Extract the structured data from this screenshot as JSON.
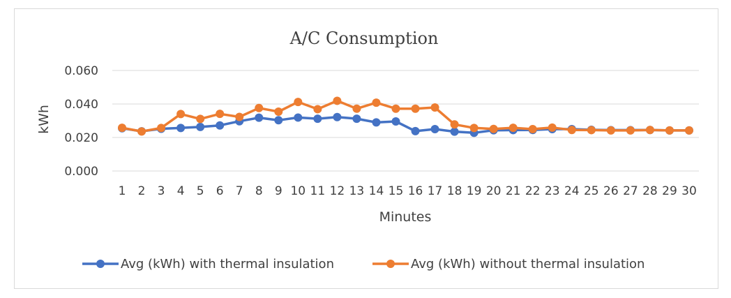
{
  "chart_data": {
    "type": "line",
    "title": "A/C Consumption",
    "xlabel": "Minutes",
    "ylabel": "kWh",
    "categories": [
      "1",
      "2",
      "3",
      "4",
      "5",
      "6",
      "7",
      "8",
      "9",
      "10",
      "11",
      "12",
      "13",
      "14",
      "15",
      "16",
      "17",
      "18",
      "19",
      "20",
      "21",
      "22",
      "23",
      "24",
      "25",
      "26",
      "27",
      "28",
      "29",
      "30"
    ],
    "ylim": [
      0,
      0.06
    ],
    "yticks": [
      0,
      0.02,
      0.04,
      0.06
    ],
    "ytick_labels": [
      "0.000",
      "0.020",
      "0.040",
      "0.060"
    ],
    "grid": true,
    "legend_position": "bottom",
    "series": [
      {
        "name": "Avg (kWh) with thermal insulation",
        "color": "#4472C4",
        "values": [
          0.0255,
          0.0237,
          0.0252,
          0.0257,
          0.0263,
          0.0272,
          0.0297,
          0.0318,
          0.0303,
          0.0319,
          0.0312,
          0.0322,
          0.0312,
          0.029,
          0.0296,
          0.0238,
          0.025,
          0.0235,
          0.0228,
          0.0243,
          0.0244,
          0.0245,
          0.025,
          0.025,
          0.0246,
          0.0244,
          0.0244,
          0.0245,
          0.0242,
          0.0242
        ]
      },
      {
        "name": "Avg (kWh) without thermal insulation",
        "color": "#ED7D31",
        "values": [
          0.0258,
          0.0236,
          0.0257,
          0.034,
          0.0311,
          0.0341,
          0.0323,
          0.0376,
          0.0354,
          0.0412,
          0.0369,
          0.0419,
          0.0372,
          0.0408,
          0.0372,
          0.0372,
          0.0379,
          0.0278,
          0.0257,
          0.0251,
          0.0258,
          0.025,
          0.0259,
          0.0245,
          0.0244,
          0.0242,
          0.0242,
          0.0245,
          0.0242,
          0.0242
        ]
      }
    ]
  }
}
